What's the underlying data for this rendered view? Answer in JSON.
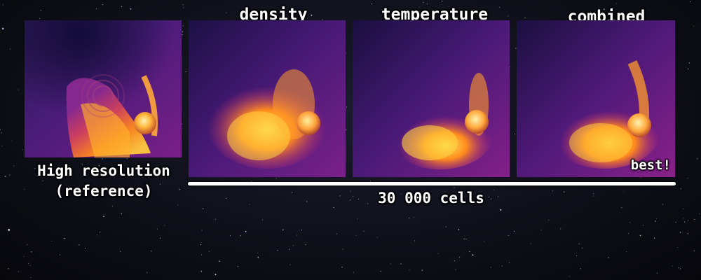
{
  "labels": {
    "density": "density",
    "temperature": "temperature",
    "combined": "combined",
    "reference_line1": "High resolution",
    "reference_line2": "(reference)",
    "best": "best!",
    "cells": "30 000 cells"
  },
  "colors": {
    "background": "#0f1019",
    "panel_base": "#6a1b8a",
    "dark_region": "#14103a",
    "bright_core": "#ffd23a",
    "hot_orange": "#ff8a1c",
    "magenta": "#c0287a"
  }
}
